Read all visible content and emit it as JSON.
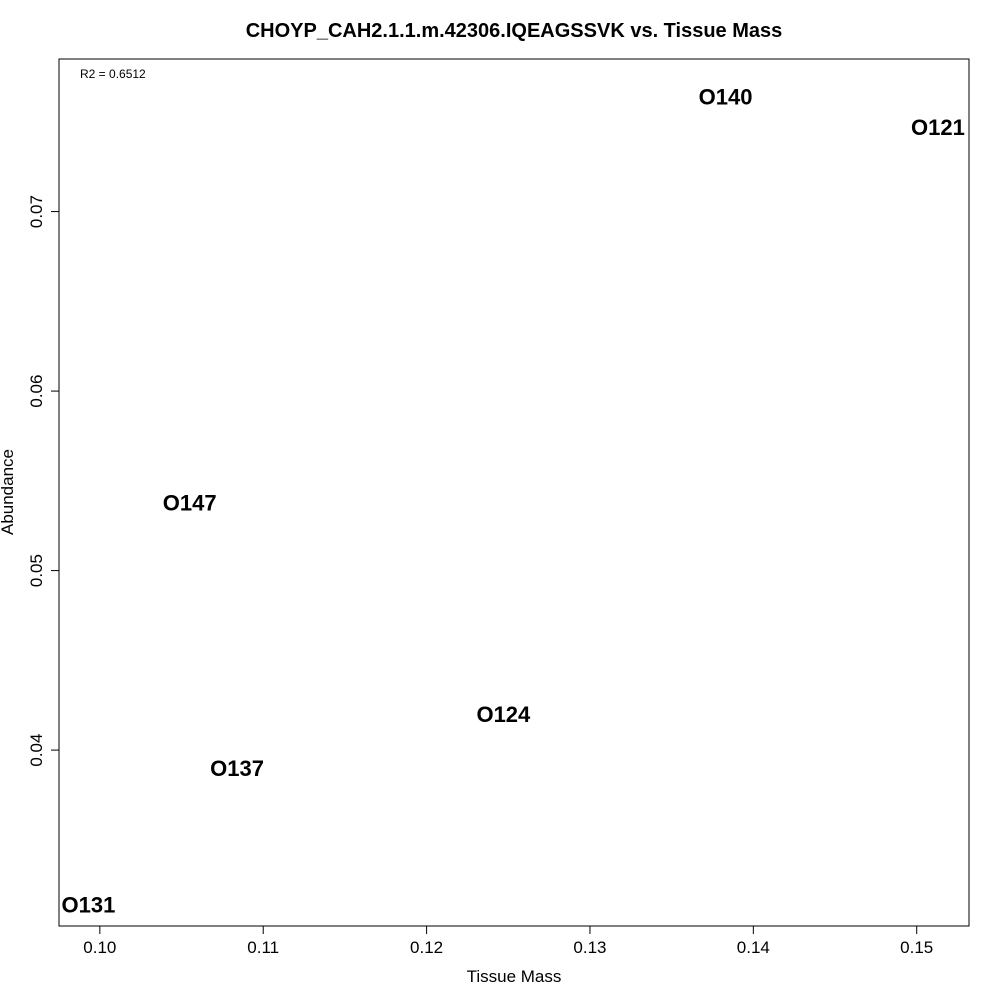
{
  "chart_data": {
    "type": "scatter",
    "title": "CHOYP_CAH2.1.1.m.42306.IQEAGSSVK vs. Tissue Mass",
    "xlabel": "Tissue Mass",
    "ylabel": "Abundance",
    "annotation": "R2 = 0.6512",
    "xlim": [
      0.0975,
      0.1532
    ],
    "ylim": [
      0.0302,
      0.0785
    ],
    "x_ticks": [
      0.1,
      0.11,
      0.12,
      0.13,
      0.14,
      0.15
    ],
    "x_tick_labels": [
      "0.10",
      "0.11",
      "0.12",
      "0.13",
      "0.14",
      "0.15"
    ],
    "y_ticks": [
      0.04,
      0.05,
      0.06,
      0.07
    ],
    "y_tick_labels": [
      "0.04",
      "0.05",
      "0.06",
      "0.07"
    ],
    "grid": false,
    "points": [
      {
        "label": "O140",
        "x": 0.1383,
        "y": 0.0764
      },
      {
        "label": "O121",
        "x": 0.1513,
        "y": 0.0747
      },
      {
        "label": "O147",
        "x": 0.1055,
        "y": 0.0538
      },
      {
        "label": "O124",
        "x": 0.1247,
        "y": 0.042
      },
      {
        "label": "O137",
        "x": 0.1084,
        "y": 0.039
      },
      {
        "label": "O131",
        "x": 0.0993,
        "y": 0.0314
      }
    ]
  }
}
